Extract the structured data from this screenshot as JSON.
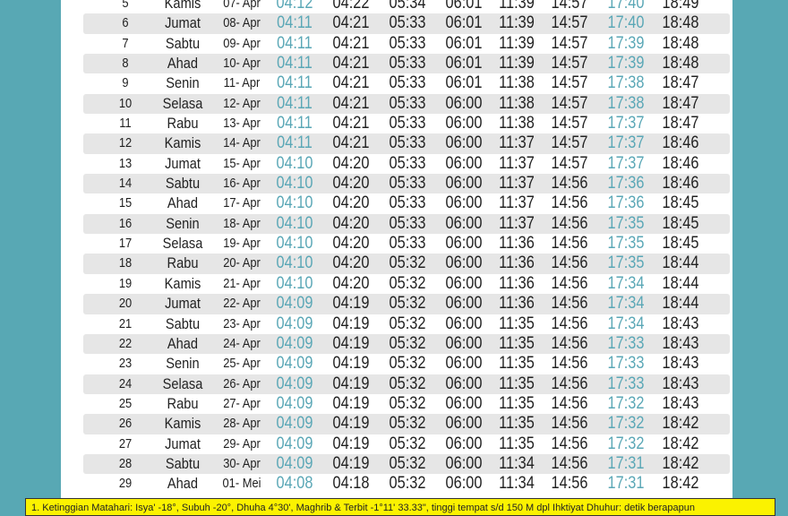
{
  "colors": {
    "background": "#58a8b4",
    "highlight": "#5aa7b6",
    "note_bg": "#fbf200",
    "alt_row": "#e6e6e6"
  },
  "highlight_columns": [
    0,
    6
  ],
  "rows": [
    [
      "5",
      "Kamis",
      "07- Apr",
      "04:12",
      "04:22",
      "05:34",
      "06:01",
      "11:39",
      "14:57",
      "17:40",
      "18:49"
    ],
    [
      "6",
      "Jumat",
      "08- Apr",
      "04:11",
      "04:21",
      "05:33",
      "06:01",
      "11:39",
      "14:57",
      "17:40",
      "18:48"
    ],
    [
      "7",
      "Sabtu",
      "09- Apr",
      "04:11",
      "04:21",
      "05:33",
      "06:01",
      "11:39",
      "14:57",
      "17:39",
      "18:48"
    ],
    [
      "8",
      "Ahad",
      "10- Apr",
      "04:11",
      "04:21",
      "05:33",
      "06:01",
      "11:39",
      "14:57",
      "17:39",
      "18:48"
    ],
    [
      "9",
      "Senin",
      "11- Apr",
      "04:11",
      "04:21",
      "05:33",
      "06:01",
      "11:38",
      "14:57",
      "17:38",
      "18:47"
    ],
    [
      "10",
      "Selasa",
      "12- Apr",
      "04:11",
      "04:21",
      "05:33",
      "06:00",
      "11:38",
      "14:57",
      "17:38",
      "18:47"
    ],
    [
      "11",
      "Rabu",
      "13- Apr",
      "04:11",
      "04:21",
      "05:33",
      "06:00",
      "11:38",
      "14:57",
      "17:37",
      "18:47"
    ],
    [
      "12",
      "Kamis",
      "14- Apr",
      "04:11",
      "04:21",
      "05:33",
      "06:00",
      "11:37",
      "14:57",
      "17:37",
      "18:46"
    ],
    [
      "13",
      "Jumat",
      "15- Apr",
      "04:10",
      "04:20",
      "05:33",
      "06:00",
      "11:37",
      "14:57",
      "17:37",
      "18:46"
    ],
    [
      "14",
      "Sabtu",
      "16- Apr",
      "04:10",
      "04:20",
      "05:33",
      "06:00",
      "11:37",
      "14:56",
      "17:36",
      "18:46"
    ],
    [
      "15",
      "Ahad",
      "17- Apr",
      "04:10",
      "04:20",
      "05:33",
      "06:00",
      "11:37",
      "14:56",
      "17:36",
      "18:45"
    ],
    [
      "16",
      "Senin",
      "18- Apr",
      "04:10",
      "04:20",
      "05:33",
      "06:00",
      "11:37",
      "14:56",
      "17:35",
      "18:45"
    ],
    [
      "17",
      "Selasa",
      "19- Apr",
      "04:10",
      "04:20",
      "05:33",
      "06:00",
      "11:36",
      "14:56",
      "17:35",
      "18:45"
    ],
    [
      "18",
      "Rabu",
      "20- Apr",
      "04:10",
      "04:20",
      "05:32",
      "06:00",
      "11:36",
      "14:56",
      "17:35",
      "18:44"
    ],
    [
      "19",
      "Kamis",
      "21- Apr",
      "04:10",
      "04:20",
      "05:32",
      "06:00",
      "11:36",
      "14:56",
      "17:34",
      "18:44"
    ],
    [
      "20",
      "Jumat",
      "22- Apr",
      "04:09",
      "04:19",
      "05:32",
      "06:00",
      "11:36",
      "14:56",
      "17:34",
      "18:44"
    ],
    [
      "21",
      "Sabtu",
      "23- Apr",
      "04:09",
      "04:19",
      "05:32",
      "06:00",
      "11:35",
      "14:56",
      "17:34",
      "18:43"
    ],
    [
      "22",
      "Ahad",
      "24- Apr",
      "04:09",
      "04:19",
      "05:32",
      "06:00",
      "11:35",
      "14:56",
      "17:33",
      "18:43"
    ],
    [
      "23",
      "Senin",
      "25- Apr",
      "04:09",
      "04:19",
      "05:32",
      "06:00",
      "11:35",
      "14:56",
      "17:33",
      "18:43"
    ],
    [
      "24",
      "Selasa",
      "26- Apr",
      "04:09",
      "04:19",
      "05:32",
      "06:00",
      "11:35",
      "14:56",
      "17:33",
      "18:43"
    ],
    [
      "25",
      "Rabu",
      "27- Apr",
      "04:09",
      "04:19",
      "05:32",
      "06:00",
      "11:35",
      "14:56",
      "17:32",
      "18:43"
    ],
    [
      "26",
      "Kamis",
      "28- Apr",
      "04:09",
      "04:19",
      "05:32",
      "06:00",
      "11:35",
      "14:56",
      "17:32",
      "18:42"
    ],
    [
      "27",
      "Jumat",
      "29- Apr",
      "04:09",
      "04:19",
      "05:32",
      "06:00",
      "11:35",
      "14:56",
      "17:32",
      "18:42"
    ],
    [
      "28",
      "Sabtu",
      "30- Apr",
      "04:09",
      "04:19",
      "05:32",
      "06:00",
      "11:34",
      "14:56",
      "17:31",
      "18:42"
    ],
    [
      "29",
      "Ahad",
      "01- Mei",
      "04:08",
      "04:18",
      "05:32",
      "06:00",
      "11:34",
      "14:56",
      "17:31",
      "18:42"
    ]
  ],
  "note": "1. Ketinggian Matahari: Isya' -18°, Subuh -20°, Dhuha 4°30', Maghrib & Terbit -1°11' 33.33\", tinggi tempat s/d 150 M dpl Ihktiyat Dhuhur: detik berapapun"
}
